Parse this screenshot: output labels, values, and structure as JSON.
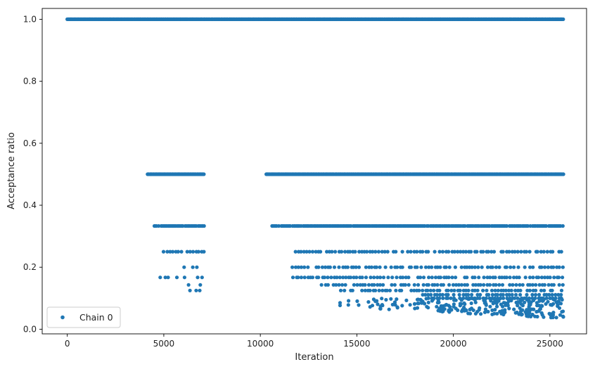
{
  "chart_data": {
    "type": "scatter",
    "title": "",
    "xlabel": "Iteration",
    "ylabel": "Acceptance ratio",
    "xlim": [
      -1300,
      26900
    ],
    "ylim": [
      -0.015,
      1.035
    ],
    "xticks": [
      0,
      5000,
      10000,
      15000,
      20000,
      25000
    ],
    "xtick_labels": [
      "0",
      "5000",
      "10000",
      "15000",
      "20000",
      "25000"
    ],
    "yticks": [
      0.0,
      0.2,
      0.4,
      0.6,
      0.8,
      1.0
    ],
    "ytick_labels": [
      "0.0",
      "0.2",
      "0.4",
      "0.6",
      "0.8",
      "1.0"
    ],
    "grid": false,
    "legend_position": "lower-left",
    "marker_color": "#1f77b4",
    "series": [
      {
        "name": "Chain 0",
        "bands": [
          {
            "y": 1.0,
            "x_range": [
              0,
              25700
            ],
            "density": "continuous"
          },
          {
            "y": 0.5,
            "x_range": [
              4150,
              7100
            ],
            "density": "continuous"
          },
          {
            "y": 0.5,
            "x_range": [
              10300,
              25700
            ],
            "density": "continuous"
          },
          {
            "y": 0.333,
            "x_range": [
              4500,
              7100
            ],
            "density": "dense"
          },
          {
            "y": 0.333,
            "x_range": [
              10600,
              25700
            ],
            "density": "dense"
          },
          {
            "y": 0.25,
            "x_range": [
              5000,
              7100
            ],
            "density": "medium"
          },
          {
            "y": 0.25,
            "x_range": [
              11800,
              25700
            ],
            "density": "medium"
          },
          {
            "y": 0.2,
            "x_range": [
              5800,
              7100
            ],
            "density": "sparse"
          },
          {
            "y": 0.2,
            "x_range": [
              11700,
              25700
            ],
            "density": "medium"
          },
          {
            "y": 0.167,
            "x_range": [
              4800,
              7000
            ],
            "density": "sparse"
          },
          {
            "y": 0.167,
            "x_range": [
              11700,
              25700
            ],
            "density": "medium"
          },
          {
            "y": 0.143,
            "x_range": [
              5800,
              7100
            ],
            "density": "sparse"
          },
          {
            "y": 0.143,
            "x_range": [
              13200,
              25700
            ],
            "density": "medium"
          },
          {
            "y": 0.125,
            "x_range": [
              6400,
              6900
            ],
            "density": "sparse"
          },
          {
            "y": 0.125,
            "x_range": [
              14200,
              25700
            ],
            "density": "medium"
          },
          {
            "y": 0.111,
            "x_range": [
              18400,
              25700
            ],
            "density": "medium"
          },
          {
            "y": 0.1,
            "x_range": [
              18700,
              25700
            ],
            "density": "medium"
          }
        ],
        "tail_scatter": {
          "x_range": [
            13200,
            25700
          ],
          "y_range": [
            0.035,
            0.1
          ],
          "count": 260
        }
      }
    ]
  }
}
